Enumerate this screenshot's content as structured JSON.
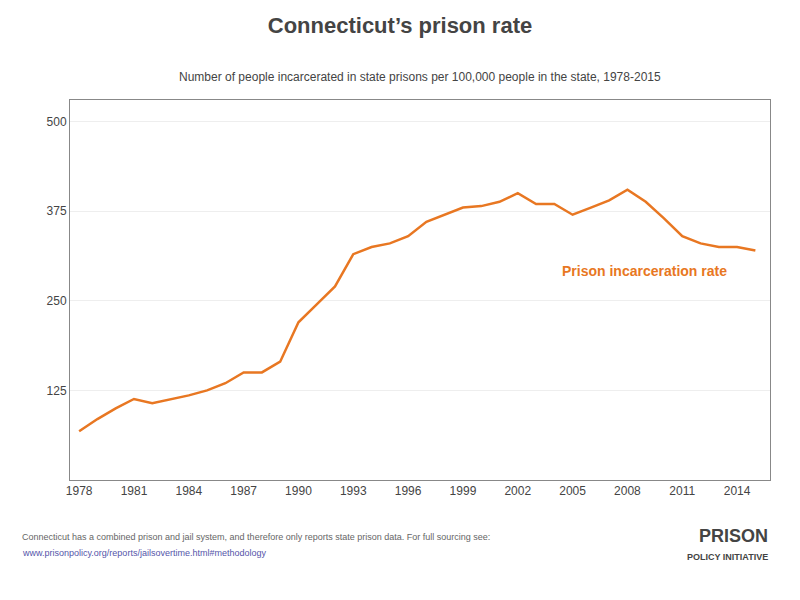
{
  "chart_data": {
    "type": "line",
    "title": "Connecticut’s prison rate",
    "subtitle": "Number of people incarcerated in state prisons per 100,000 people in the state, 1978-2015",
    "annotations": [
      "Prison incarceration rate",
      "Connecticut has a combined prison and jail system, and therefore only reports state prison data. For full sourcing see:",
      "www.prisonpolicy.org/reports/jailsovertime.html#methodology",
      "PRISON",
      "POLICY INITIATIVE"
    ],
    "x": [
      1978,
      1979,
      1980,
      1981,
      1982,
      1983,
      1984,
      1985,
      1986,
      1987,
      1988,
      1989,
      1990,
      1991,
      1992,
      1993,
      1994,
      1995,
      1996,
      1997,
      1998,
      1999,
      2000,
      2001,
      2002,
      2003,
      2004,
      2005,
      2006,
      2007,
      2008,
      2009,
      2010,
      2011,
      2012,
      2013,
      2014,
      2015
    ],
    "values": [
      68,
      85,
      100,
      113,
      107,
      112,
      118,
      125,
      135,
      150,
      150,
      165,
      220,
      245,
      270,
      315,
      325,
      330,
      340,
      360,
      370,
      380,
      382,
      388,
      400,
      385,
      385,
      370,
      380,
      390,
      405,
      388,
      365,
      340,
      330,
      325,
      325,
      320
    ],
    "color": "#e87722",
    "xlim": [
      1977.5,
      2015.8
    ],
    "xticks": [
      1978,
      1981,
      1984,
      1987,
      1990,
      1993,
      1996,
      1999,
      2002,
      2005,
      2008,
      2011,
      2014
    ],
    "ylim": [
      0,
      530
    ],
    "yticks": [
      125,
      250,
      375,
      500
    ],
    "grid": true
  }
}
